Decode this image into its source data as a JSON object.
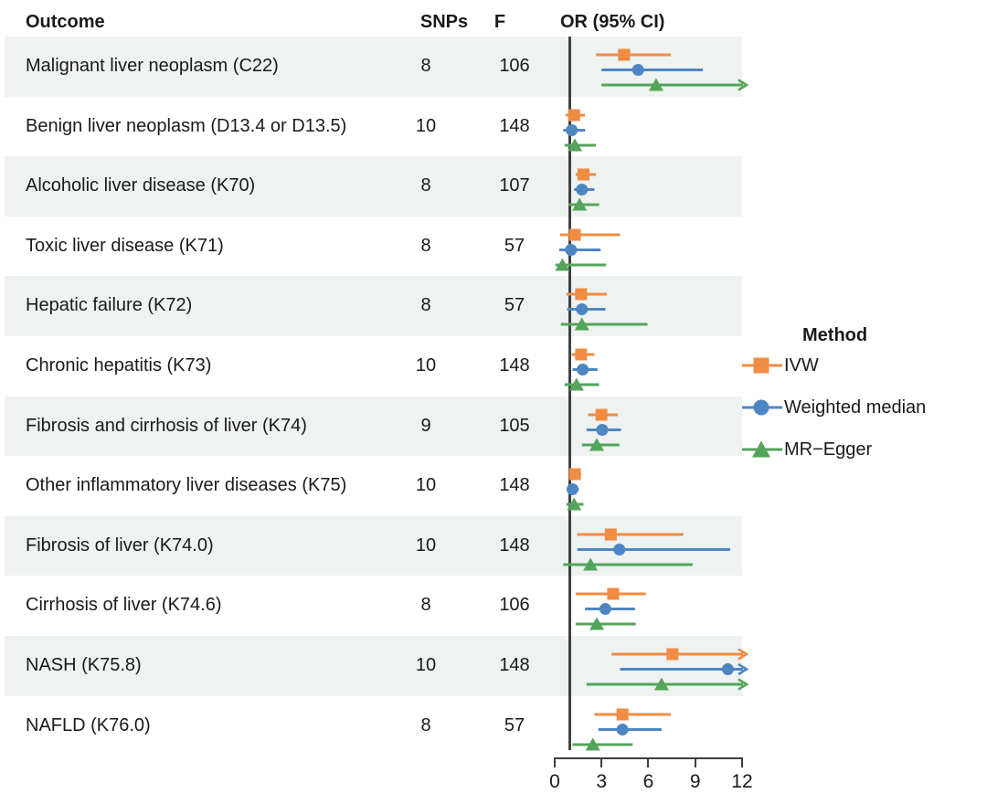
{
  "header": {
    "outcome": "Outcome",
    "snps": "SNPs",
    "f": "F",
    "or_ci": "OR (95% CI)"
  },
  "legend": {
    "title": "Method",
    "items": [
      {
        "label": "IVW",
        "marker": "square-icon",
        "color": "#F18C43"
      },
      {
        "label": "Weighted median",
        "marker": "circle-icon",
        "color": "#4E86C3"
      },
      {
        "label": "MR−Egger",
        "marker": "triangle-icon",
        "color": "#54A45B"
      }
    ]
  },
  "colors": {
    "ivw": "#F18C43",
    "weighted_median": "#4E86C3",
    "mr_egger": "#54A45B",
    "stripe": "#EEF2F0",
    "axis": "#3F3F3F",
    "text": "#1A1A1A"
  },
  "chart_data": {
    "type": "forest",
    "title": "",
    "xlabel": "",
    "x_axis": {
      "ticks": [
        0,
        3,
        6,
        9,
        12
      ],
      "range": [
        0,
        12
      ],
      "reference_line": 1
    },
    "methods": [
      "IVW",
      "Weighted median",
      "MR-Egger"
    ],
    "columns": [
      "Outcome",
      "SNPs",
      "F",
      "OR (95% CI)"
    ],
    "rows": [
      {
        "outcome": "Malignant liver neoplasm (C22)",
        "snps": "8",
        "f": "106",
        "estimates": [
          {
            "method": "IVW",
            "or": 4.5,
            "lo": 2.7,
            "hi": 7.5,
            "arrow": false
          },
          {
            "method": "Weighted median",
            "or": 5.4,
            "lo": 3.05,
            "hi": 9.55,
            "arrow": false
          },
          {
            "method": "MR-Egger",
            "or": 6.55,
            "lo": 3.05,
            "hi": 12,
            "arrow": true
          }
        ]
      },
      {
        "outcome": "Benign liver neoplasm (D13.4 or D13.5)",
        "snps": "10",
        "f": "148",
        "estimates": [
          {
            "method": "IVW",
            "or": 1.3,
            "lo": 0.75,
            "hi": 2.0,
            "arrow": false
          },
          {
            "method": "Weighted median",
            "or": 1.15,
            "lo": 0.6,
            "hi": 2.0,
            "arrow": false
          },
          {
            "method": "MR-Egger",
            "or": 1.35,
            "lo": 0.7,
            "hi": 2.7,
            "arrow": false
          }
        ]
      },
      {
        "outcome": "Alcoholic liver disease (K70)",
        "snps": "8",
        "f": "107",
        "estimates": [
          {
            "method": "IVW",
            "or": 1.9,
            "lo": 1.4,
            "hi": 2.7,
            "arrow": false
          },
          {
            "method": "Weighted median",
            "or": 1.8,
            "lo": 1.3,
            "hi": 2.6,
            "arrow": false
          },
          {
            "method": "MR-Egger",
            "or": 1.65,
            "lo": 0.95,
            "hi": 2.9,
            "arrow": false
          }
        ]
      },
      {
        "outcome": "Toxic liver disease (K71)",
        "snps": "8",
        "f": "57",
        "estimates": [
          {
            "method": "IVW",
            "or": 1.35,
            "lo": 0.4,
            "hi": 4.25,
            "arrow": false
          },
          {
            "method": "Weighted median",
            "or": 1.1,
            "lo": 0.35,
            "hi": 3.0,
            "arrow": false
          },
          {
            "method": "MR-Egger",
            "or": 0.55,
            "lo": 0.1,
            "hi": 3.35,
            "arrow": false
          }
        ]
      },
      {
        "outcome": "Hepatic failure (K72)",
        "snps": "8",
        "f": "57",
        "estimates": [
          {
            "method": "IVW",
            "or": 1.75,
            "lo": 0.8,
            "hi": 3.4,
            "arrow": false
          },
          {
            "method": "Weighted median",
            "or": 1.8,
            "lo": 0.85,
            "hi": 3.3,
            "arrow": false
          },
          {
            "method": "MR-Egger",
            "or": 1.8,
            "lo": 0.45,
            "hi": 6.0,
            "arrow": false
          }
        ]
      },
      {
        "outcome": "Chronic hepatitis (K73)",
        "snps": "10",
        "f": "148",
        "estimates": [
          {
            "method": "IVW",
            "or": 1.75,
            "lo": 1.15,
            "hi": 2.6,
            "arrow": false
          },
          {
            "method": "Weighted median",
            "or": 1.85,
            "lo": 1.2,
            "hi": 2.8,
            "arrow": false
          },
          {
            "method": "MR-Egger",
            "or": 1.45,
            "lo": 0.7,
            "hi": 2.9,
            "arrow": false
          }
        ]
      },
      {
        "outcome": "Fibrosis and cirrhosis of liver (K74)",
        "snps": "9",
        "f": "105",
        "estimates": [
          {
            "method": "IVW",
            "or": 3.05,
            "lo": 2.2,
            "hi": 4.1,
            "arrow": false
          },
          {
            "method": "Weighted median",
            "or": 3.1,
            "lo": 2.1,
            "hi": 4.3,
            "arrow": false
          },
          {
            "method": "MR-Egger",
            "or": 2.75,
            "lo": 1.8,
            "hi": 4.2,
            "arrow": false
          }
        ]
      },
      {
        "outcome": "Other inflammatory liver diseases (K75)",
        "snps": "10",
        "f": "148",
        "estimates": [
          {
            "method": "IVW",
            "or": 1.35,
            "lo": 1.0,
            "hi": 1.75,
            "arrow": false
          },
          {
            "method": "Weighted median",
            "or": 1.2,
            "lo": 0.85,
            "hi": 1.6,
            "arrow": false
          },
          {
            "method": "MR-Egger",
            "or": 1.3,
            "lo": 0.8,
            "hi": 1.9,
            "arrow": false
          }
        ]
      },
      {
        "outcome": "Fibrosis of liver (K74.0)",
        "snps": "10",
        "f": "148",
        "estimates": [
          {
            "method": "IVW",
            "or": 3.65,
            "lo": 1.5,
            "hi": 8.3,
            "arrow": false
          },
          {
            "method": "Weighted median",
            "or": 4.2,
            "lo": 1.5,
            "hi": 11.3,
            "arrow": false
          },
          {
            "method": "MR-Egger",
            "or": 2.35,
            "lo": 0.6,
            "hi": 8.9,
            "arrow": false
          }
        ]
      },
      {
        "outcome": "Cirrhosis of liver (K74.6)",
        "snps": "8",
        "f": "106",
        "estimates": [
          {
            "method": "IVW",
            "or": 3.8,
            "lo": 1.4,
            "hi": 5.9,
            "arrow": false
          },
          {
            "method": "Weighted median",
            "or": 3.3,
            "lo": 2.0,
            "hi": 5.2,
            "arrow": false
          },
          {
            "method": "MR-Egger",
            "or": 2.75,
            "lo": 1.4,
            "hi": 5.25,
            "arrow": false
          }
        ]
      },
      {
        "outcome": "NASH (K75.8)",
        "snps": "10",
        "f": "148",
        "estimates": [
          {
            "method": "IVW",
            "or": 7.6,
            "lo": 3.7,
            "hi": 12,
            "arrow": true
          },
          {
            "method": "Weighted median",
            "or": 11.15,
            "lo": 4.25,
            "hi": 12,
            "arrow": true
          },
          {
            "method": "MR-Egger",
            "or": 6.9,
            "lo": 2.1,
            "hi": 12,
            "arrow": true
          }
        ]
      },
      {
        "outcome": "NAFLD (K76.0)",
        "snps": "8",
        "f": "57",
        "estimates": [
          {
            "method": "IVW",
            "or": 4.4,
            "lo": 2.6,
            "hi": 7.5,
            "arrow": false
          },
          {
            "method": "Weighted median",
            "or": 4.4,
            "lo": 2.85,
            "hi": 6.9,
            "arrow": false
          },
          {
            "method": "MR-Egger",
            "or": 2.5,
            "lo": 1.2,
            "hi": 5.05,
            "arrow": false
          }
        ]
      }
    ]
  }
}
